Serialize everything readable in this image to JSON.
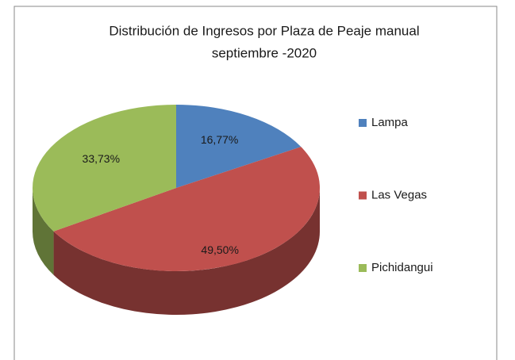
{
  "chart_data": {
    "type": "pie3d",
    "title": "Distribución de Ingresos por Plaza de Peaje manual",
    "subtitle": "septiembre -2020",
    "categories": [
      "Lampa",
      "Las Vegas",
      "Pichidangui"
    ],
    "values": [
      16.77,
      49.5,
      33.73
    ],
    "value_labels": [
      "16,77%",
      "49,50%",
      "33,73%"
    ],
    "colors": [
      "#4f81bd",
      "#c0504d",
      "#9bbb59"
    ],
    "legend": "right"
  }
}
